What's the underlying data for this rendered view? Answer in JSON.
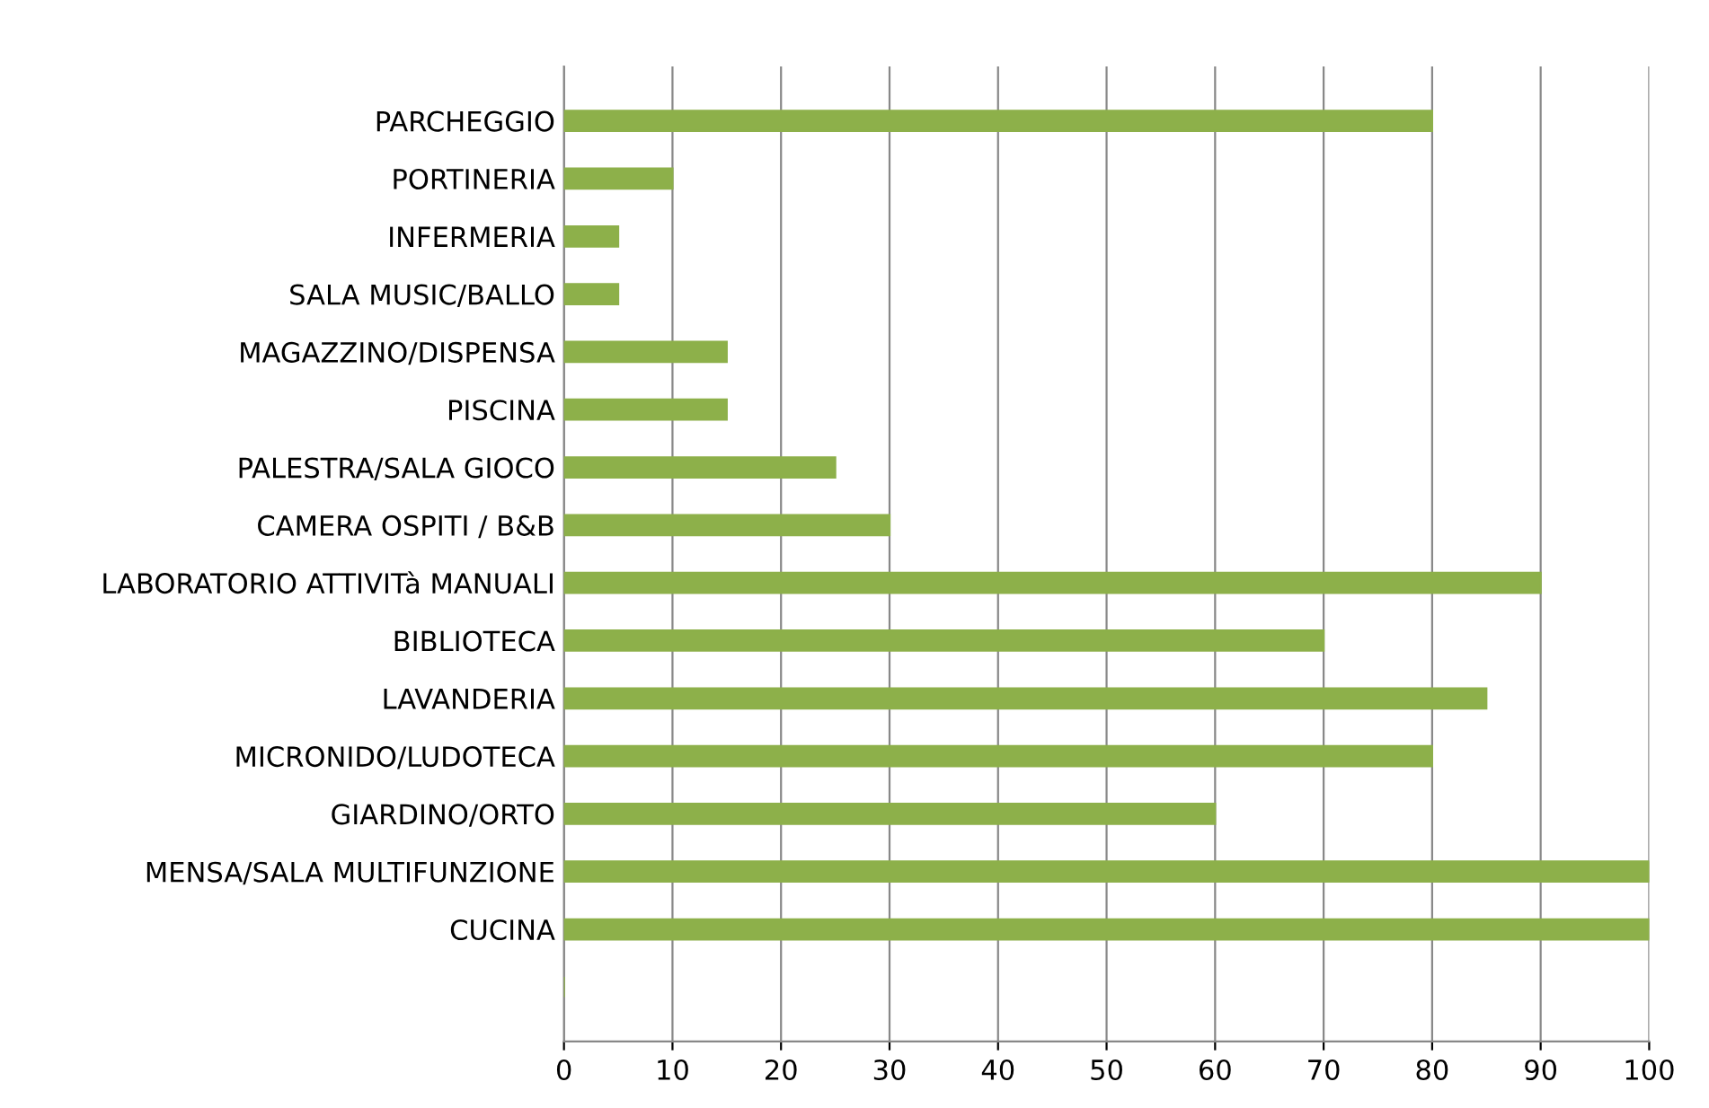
{
  "chart_data": {
    "type": "bar",
    "orientation": "horizontal",
    "categories": [
      "PARCHEGGIO",
      "PORTINERIA",
      "INFERMERIA",
      "SALA MUSIC/BALLO",
      "MAGAZZINO/DISPENSA",
      "PISCINA",
      "PALESTRA/SALA GIOCO",
      "CAMERA OSPITI / B&B",
      "LABORATORIO ATTIVITà MANUALI",
      "BIBLIOTECA",
      "LAVANDERIA",
      "MICRONIDO/LUDOTECA",
      "GIARDINO/ORTO",
      "MENSA/SALA MULTIFUNZIONE",
      "CUCINA",
      null
    ],
    "values": [
      80,
      10,
      5,
      5,
      15,
      15,
      25,
      30,
      90,
      70,
      85,
      80,
      60,
      100,
      100,
      0
    ],
    "color": "#8db04a",
    "xlim": [
      0,
      100
    ],
    "xticks": [
      0,
      10,
      20,
      30,
      40,
      50,
      60,
      70,
      80,
      90,
      100
    ],
    "grid": "x"
  }
}
